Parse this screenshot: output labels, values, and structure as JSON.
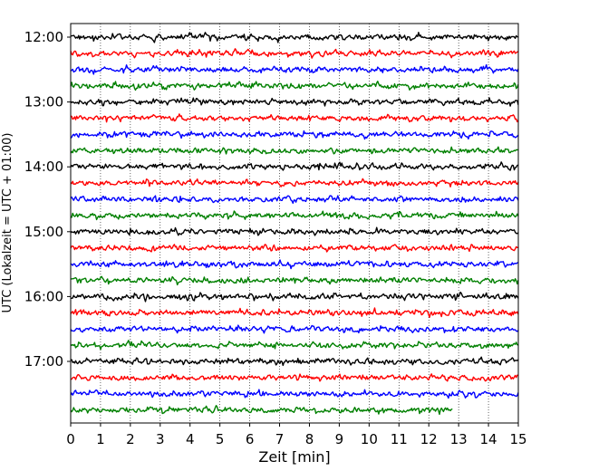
{
  "chart_data": {
    "type": "line",
    "title": "",
    "xlabel": "Zeit  [min]",
    "ylabel": "UTC (Lokalzeit = UTC + 01:00)",
    "xlim": [
      0,
      15
    ],
    "xticks": [
      "0",
      "1",
      "2",
      "3",
      "4",
      "5",
      "6",
      "7",
      "8",
      "9",
      "10",
      "11",
      "12",
      "13",
      "14",
      "15"
    ],
    "yticks": [
      "12:00",
      "13:00",
      "14:00",
      "15:00",
      "16:00",
      "17:00"
    ],
    "grid": "vertical dotted",
    "trace_interval_minutes": 15,
    "trace_colors": [
      "#000000",
      "#ff0000",
      "#0000ff",
      "#008000"
    ],
    "traces": [
      {
        "start": "12:00",
        "end_minute": 15
      },
      {
        "start": "12:15",
        "end_minute": 15
      },
      {
        "start": "12:30",
        "end_minute": 15
      },
      {
        "start": "12:45",
        "end_minute": 15
      },
      {
        "start": "13:00",
        "end_minute": 15
      },
      {
        "start": "13:15",
        "end_minute": 15
      },
      {
        "start": "13:30",
        "end_minute": 15
      },
      {
        "start": "13:45",
        "end_minute": 15
      },
      {
        "start": "14:00",
        "end_minute": 15
      },
      {
        "start": "14:15",
        "end_minute": 15
      },
      {
        "start": "14:30",
        "end_minute": 15
      },
      {
        "start": "14:45",
        "end_minute": 15
      },
      {
        "start": "15:00",
        "end_minute": 15
      },
      {
        "start": "15:15",
        "end_minute": 15
      },
      {
        "start": "15:30",
        "end_minute": 15
      },
      {
        "start": "15:45",
        "end_minute": 15
      },
      {
        "start": "16:00",
        "end_minute": 15
      },
      {
        "start": "16:15",
        "end_minute": 15
      },
      {
        "start": "16:30",
        "end_minute": 15
      },
      {
        "start": "16:45",
        "end_minute": 15
      },
      {
        "start": "17:00",
        "end_minute": 15
      },
      {
        "start": "17:15",
        "end_minute": 15
      },
      {
        "start": "17:30",
        "end_minute": 15
      },
      {
        "start": "17:45",
        "end_minute": 12.8
      }
    ]
  }
}
